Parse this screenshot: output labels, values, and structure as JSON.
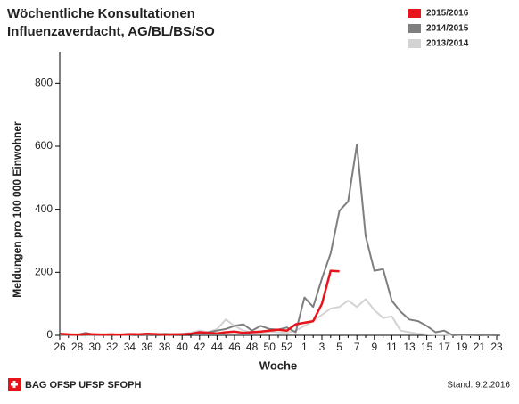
{
  "chart_data": {
    "type": "line",
    "title": [
      "Wöchentliche Konsultationen",
      "Influenzaverdacht, AG/BL/BS/SO"
    ],
    "x_label": "Woche",
    "y_label": "Meldungen pro 100 000 Einwohner",
    "categories": [
      "26",
      null,
      "28",
      null,
      "30",
      null,
      "32",
      null,
      "34",
      null,
      "36",
      null,
      "38",
      null,
      "40",
      null,
      "42",
      null,
      "44",
      null,
      "46",
      null,
      "48",
      null,
      "50",
      null,
      "52",
      null,
      "1",
      null,
      "3",
      null,
      "5",
      null,
      "7",
      null,
      "9",
      null,
      "11",
      null,
      "13",
      null,
      "15",
      null,
      "17",
      null,
      "19",
      null,
      "21",
      null,
      "23"
    ],
    "series": [
      {
        "name": "2015/2016",
        "color": "#e8141c",
        "values": [
          5,
          3,
          2,
          4,
          3,
          2,
          3,
          2,
          4,
          3,
          5,
          4,
          2,
          3,
          3,
          5,
          10,
          8,
          6,
          10,
          12,
          8,
          10,
          12,
          15,
          18,
          15,
          35,
          40,
          45,
          100,
          205,
          203,
          null,
          null,
          null,
          null,
          null,
          null,
          null,
          null,
          null,
          null,
          null,
          null,
          null,
          null,
          null,
          null,
          null,
          null
        ]
      },
      {
        "name": "2014/2015",
        "color": "#7f7f7f",
        "values": [
          3,
          2,
          2,
          8,
          2,
          3,
          2,
          3,
          4,
          2,
          3,
          2,
          5,
          3,
          4,
          5,
          6,
          10,
          15,
          20,
          30,
          35,
          15,
          30,
          20,
          18,
          25,
          10,
          120,
          90,
          180,
          260,
          395,
          425,
          605,
          315,
          205,
          210,
          110,
          75,
          50,
          45,
          30,
          10,
          15,
          0,
          2,
          1,
          0,
          1,
          0
        ]
      },
      {
        "name": "2013/2014",
        "color": "#d3d3d3",
        "values": [
          2,
          2,
          3,
          2,
          2,
          4,
          3,
          2,
          2,
          3,
          2,
          4,
          3,
          2,
          5,
          8,
          15,
          10,
          20,
          50,
          30,
          15,
          10,
          8,
          12,
          10,
          8,
          15,
          30,
          45,
          65,
          85,
          90,
          110,
          90,
          115,
          80,
          55,
          60,
          15,
          10,
          5,
          3,
          2,
          2,
          1,
          1,
          0,
          1,
          0,
          0
        ]
      }
    ],
    "ylim": [
      0,
      900
    ],
    "yticks": [
      0,
      200,
      400,
      600,
      800
    ],
    "legend": "top-right",
    "footer_left": "BAG OFSP UFSP SFOPH",
    "footer_right": "Stand: 9.2.2016"
  }
}
